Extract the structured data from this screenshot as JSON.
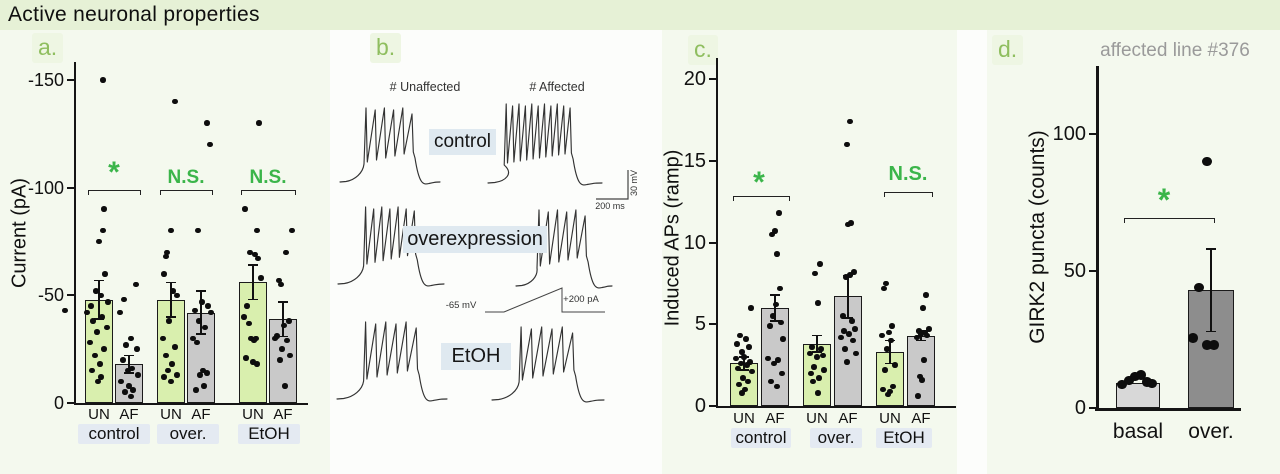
{
  "title": "Active neuronal  properties",
  "panels": {
    "a": {
      "label": "a."
    },
    "b": {
      "label": "b."
    },
    "c": {
      "label": "c."
    },
    "d": {
      "label": "d."
    }
  },
  "colors": {
    "significance_green": "#3bb54a",
    "panel_label_green": "#8fbe5f",
    "bar_green": "#d9efae",
    "bar_gray": "#c9c9c9",
    "bar_dark_gray": "#8d8d8d",
    "bar_light_gray": "#d8d8d8",
    "title_band": "#e6f1d6",
    "label_highlight": "#e4eaf2",
    "background": "#f4f9ee"
  },
  "chart_data": [
    {
      "id": "a",
      "type": "bar",
      "ylabel": "Current (pA)",
      "yticks": [
        0,
        -50,
        -100,
        -150
      ],
      "ylim": [
        0,
        -160
      ],
      "groups": [
        "control",
        "over.",
        "EtOH"
      ],
      "bar_labels": [
        "UN",
        "AF"
      ],
      "series": [
        {
          "group": "control",
          "condition": "UN",
          "mean": -48,
          "sem": 9,
          "points": [
            [
              4,
              -150
            ],
            [
              5,
              -90
            ],
            [
              4,
              -80
            ],
            [
              0,
              -75
            ],
            [
              6,
              -60
            ],
            [
              -3,
              -52
            ],
            [
              2,
              -50
            ],
            [
              9,
              -47
            ],
            [
              -8,
              -45
            ],
            [
              -34,
              -43
            ],
            [
              -12,
              -42
            ],
            [
              3,
              -40
            ],
            [
              -6,
              -38
            ],
            [
              8,
              -35
            ],
            [
              -2,
              -33
            ],
            [
              -9,
              -28
            ],
            [
              5,
              -25
            ],
            [
              -4,
              -22
            ],
            [
              1,
              -18
            ],
            [
              -7,
              -15
            ],
            [
              2,
              -12
            ],
            [
              -1,
              -10
            ]
          ]
        },
        {
          "group": "control",
          "condition": "AF",
          "mean": -18,
          "sem": 4,
          "points": [
            [
              7,
              -55
            ],
            [
              -5,
              -48
            ],
            [
              -9,
              -42
            ],
            [
              2,
              -30
            ],
            [
              -3,
              -27
            ],
            [
              8,
              -25
            ],
            [
              -6,
              -20
            ],
            [
              3,
              -16
            ],
            [
              -1,
              -15
            ],
            [
              9,
              -13
            ],
            [
              -8,
              -10
            ],
            [
              0,
              -8
            ],
            [
              4,
              -6
            ],
            [
              -4,
              -5
            ],
            [
              2,
              -3
            ]
          ]
        },
        {
          "group": "over.",
          "condition": "UN",
          "mean": -48,
          "sem": 8,
          "points": [
            [
              4,
              -140
            ],
            [
              0,
              -80
            ],
            [
              -4,
              -70
            ],
            [
              -5,
              -68
            ],
            [
              -7,
              -60
            ],
            [
              2,
              -52
            ],
            [
              6,
              -50
            ],
            [
              -2,
              -38
            ],
            [
              -8,
              -30
            ],
            [
              4,
              -26
            ],
            [
              -5,
              -22
            ],
            [
              1,
              -18
            ],
            [
              -3,
              -15
            ],
            [
              6,
              -13
            ],
            [
              -7,
              -12
            ],
            [
              0,
              -10
            ]
          ]
        },
        {
          "group": "over.",
          "condition": "AF",
          "mean": -42,
          "sem": 10,
          "points": [
            [
              6,
              -130
            ],
            [
              9,
              -120
            ],
            [
              -3,
              -80
            ],
            [
              1,
              -47
            ],
            [
              7,
              -45
            ],
            [
              -6,
              -43
            ],
            [
              10,
              -42
            ],
            [
              -2,
              -38
            ],
            [
              4,
              -35
            ],
            [
              -8,
              -30
            ],
            [
              -4,
              -28
            ],
            [
              2,
              -15
            ],
            [
              6,
              -14
            ],
            [
              -1,
              -13
            ],
            [
              3,
              -8
            ],
            [
              -5,
              -6
            ]
          ]
        },
        {
          "group": "EtOH",
          "condition": "UN",
          "mean": -56,
          "sem": 8,
          "points": [
            [
              6,
              -130
            ],
            [
              -8,
              -90
            ],
            [
              4,
              -80
            ],
            [
              -3,
              -70
            ],
            [
              2,
              -69
            ],
            [
              5,
              -67
            ],
            [
              8,
              -58
            ],
            [
              -6,
              -45
            ],
            [
              -9,
              -40
            ],
            [
              -4,
              -37
            ],
            [
              -2,
              -30
            ],
            [
              3,
              -30
            ],
            [
              1,
              -29
            ],
            [
              -7,
              -21
            ],
            [
              0,
              -19
            ],
            [
              4,
              -18
            ]
          ]
        },
        {
          "group": "EtOH",
          "condition": "AF",
          "mean": -39,
          "sem": 8,
          "points": [
            [
              9,
              -80
            ],
            [
              3,
              -70
            ],
            [
              -4,
              -57
            ],
            [
              -2,
              -55
            ],
            [
              6,
              -38
            ],
            [
              1,
              -36
            ],
            [
              -6,
              -31
            ],
            [
              -8,
              -30
            ],
            [
              4,
              -29
            ],
            [
              -1,
              -25
            ],
            [
              7,
              -22
            ],
            [
              -3,
              -20
            ],
            [
              2,
              -8
            ]
          ]
        }
      ],
      "significance": [
        {
          "group": "control",
          "label": "*"
        },
        {
          "group": "over.",
          "label": "N.S."
        },
        {
          "group": "EtOH",
          "label": "N.S."
        }
      ]
    },
    {
      "id": "b",
      "type": "traces",
      "col_headers": [
        "# Unaffected",
        "# Affected"
      ],
      "rows": [
        {
          "label": "control",
          "spikes_unaffected": 6,
          "spikes_affected": 11
        },
        {
          "label": "overexpression",
          "spikes_unaffected": 7,
          "spikes_affected": 6
        },
        {
          "label": "EtOH",
          "spikes_unaffected": 6,
          "spikes_affected": 6
        }
      ],
      "scale_bar": {
        "vertical": "30 mV",
        "horizontal": "200 ms"
      },
      "stimulus": {
        "baseline_label": "-65 mV",
        "peak_label": "+200 pA",
        "type": "current ramp"
      }
    },
    {
      "id": "c",
      "type": "bar",
      "ylabel": "Induced APs (ramp)",
      "yticks": [
        0,
        5,
        10,
        15,
        20
      ],
      "ylim": [
        0,
        21
      ],
      "groups": [
        "control",
        "over.",
        "EtOH"
      ],
      "bar_labels": [
        "UN",
        "AF"
      ],
      "series": [
        {
          "group": "control",
          "condition": "UN",
          "mean": 2.6,
          "sem": 0.4,
          "points": [
            [
              7,
              6.0
            ],
            [
              -4,
              4.3
            ],
            [
              2,
              4.1
            ],
            [
              -7,
              3.8
            ],
            [
              5,
              3.6
            ],
            [
              -2,
              3.3
            ],
            [
              0,
              3.0
            ],
            [
              -8,
              2.9
            ],
            [
              6,
              2.7
            ],
            [
              -3,
              2.6
            ],
            [
              3,
              2.5
            ],
            [
              -6,
              2.3
            ],
            [
              8,
              2.1
            ],
            [
              -1,
              1.7
            ],
            [
              4,
              1.5
            ],
            [
              -5,
              1.3
            ],
            [
              1,
              1.0
            ],
            [
              -2,
              0.8
            ]
          ]
        },
        {
          "group": "control",
          "condition": "AF",
          "mean": 6.0,
          "sem": 0.8,
          "points": [
            [
              4,
              11.8
            ],
            [
              0,
              10.7
            ],
            [
              -3,
              10.5
            ],
            [
              2,
              9.3
            ],
            [
              5,
              7.2
            ],
            [
              1,
              6.2
            ],
            [
              -2,
              5.5
            ],
            [
              6,
              5.1
            ],
            [
              -5,
              4.9
            ],
            [
              8,
              4.1
            ],
            [
              -7,
              2.9
            ],
            [
              3,
              2.8
            ],
            [
              -1,
              2.6
            ],
            [
              7,
              2.0
            ],
            [
              -4,
              1.5
            ],
            [
              2,
              1.2
            ]
          ]
        },
        {
          "group": "over.",
          "condition": "UN",
          "mean": 3.8,
          "sem": 0.5,
          "points": [
            [
              3,
              8.7
            ],
            [
              -2,
              8.1
            ],
            [
              1,
              6.3
            ],
            [
              -5,
              3.6
            ],
            [
              4,
              3.5
            ],
            [
              -7,
              3.2
            ],
            [
              6,
              3.1
            ],
            [
              0,
              3.0
            ],
            [
              -3,
              2.4
            ],
            [
              7,
              2.2
            ],
            [
              -6,
              2.0
            ],
            [
              2,
              1.7
            ],
            [
              -4,
              1.5
            ],
            [
              1,
              0.8
            ]
          ]
        },
        {
          "group": "over.",
          "condition": "AF",
          "mean": 6.7,
          "sem": 1.3,
          "points": [
            [
              2,
              17.4
            ],
            [
              -1,
              16.0
            ],
            [
              3,
              11.2
            ],
            [
              0,
              11.1
            ],
            [
              6,
              8.2
            ],
            [
              2,
              8.0
            ],
            [
              -2,
              7.9
            ],
            [
              -5,
              5.5
            ],
            [
              4,
              5.2
            ],
            [
              7,
              4.7
            ],
            [
              -4,
              4.6
            ],
            [
              1,
              4.4
            ],
            [
              -7,
              4.2
            ],
            [
              5,
              4.0
            ],
            [
              -3,
              3.5
            ],
            [
              8,
              3.2
            ],
            [
              -1,
              2.7
            ]
          ]
        },
        {
          "group": "EtOH",
          "condition": "UN",
          "mean": 3.3,
          "sem": 0.7,
          "points": [
            [
              -4,
              7.5
            ],
            [
              -6,
              7.2
            ],
            [
              2,
              4.9
            ],
            [
              -1,
              4.5
            ],
            [
              -8,
              4.3
            ],
            [
              1,
              4.0
            ],
            [
              -3,
              3.5
            ],
            [
              5,
              2.5
            ],
            [
              -5,
              2.2
            ],
            [
              3,
              1.2
            ],
            [
              -7,
              1.0
            ],
            [
              0,
              0.9
            ],
            [
              -2,
              0.7
            ]
          ]
        },
        {
          "group": "EtOH",
          "condition": "AF",
          "mean": 4.3,
          "sem": 0.3,
          "points": [
            [
              5,
              6.8
            ],
            [
              2,
              6.0
            ],
            [
              8,
              4.7
            ],
            [
              -2,
              4.6
            ],
            [
              4,
              4.5
            ],
            [
              0,
              4.4
            ],
            [
              6,
              4.3
            ],
            [
              -4,
              4.2
            ],
            [
              3,
              2.8
            ],
            [
              -1,
              1.8
            ],
            [
              1,
              1.6
            ],
            [
              -3,
              0.6
            ]
          ]
        }
      ],
      "significance": [
        {
          "group": "control",
          "label": "*"
        },
        {
          "group": "EtOH",
          "label": "N.S."
        }
      ]
    },
    {
      "id": "d",
      "type": "bar",
      "title": "affected line #376",
      "ylabel": "GIRK2 puncta (counts)",
      "yticks": [
        0,
        50,
        100
      ],
      "ylim": [
        0,
        125
      ],
      "categories": [
        "basal",
        "over."
      ],
      "series": [
        {
          "category": "basal",
          "mean": 9,
          "sem": null,
          "points": [
            [
              -16,
              8.5
            ],
            [
              -9,
              10
            ],
            [
              -3,
              11.5
            ],
            [
              3,
              12
            ],
            [
              9,
              9.5
            ],
            [
              14,
              9
            ]
          ]
        },
        {
          "category": "over.",
          "mean": 43,
          "sem": 15,
          "points": [
            [
              -18,
              25.5
            ],
            [
              -4,
              23
            ],
            [
              3,
              23
            ],
            [
              -12,
              44
            ],
            [
              -4,
              90
            ]
          ]
        }
      ],
      "significance": [
        {
          "label": "*"
        }
      ]
    }
  ]
}
